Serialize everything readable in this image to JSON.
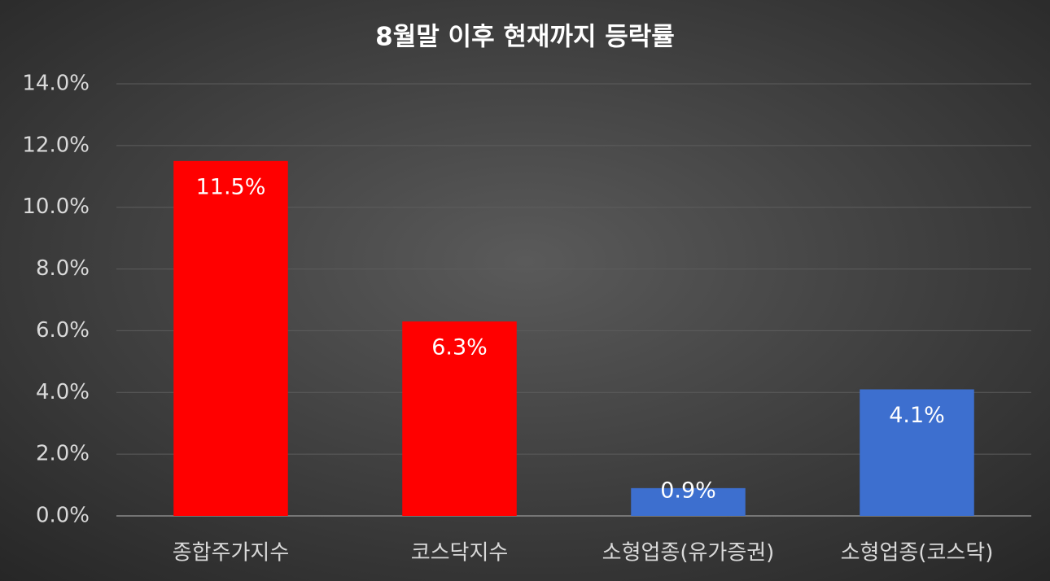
{
  "chart_data": {
    "type": "bar",
    "title": "8월말 이후 현재까지 등락률",
    "categories": [
      "종합주가지수",
      "코스닥지수",
      "소형업종(유가증권)",
      "소형업종(코스닥)"
    ],
    "values": [
      11.5,
      6.3,
      0.9,
      4.1
    ],
    "value_labels": [
      "11.5%",
      "6.3%",
      "0.9%",
      "4.1%"
    ],
    "colors": [
      "#ff0000",
      "#ff0000",
      "#3d6fcf",
      "#3d6fcf"
    ],
    "ylim": [
      0,
      14
    ],
    "yticks": [
      {
        "value": 0,
        "label": "0.0%"
      },
      {
        "value": 2,
        "label": "2.0%"
      },
      {
        "value": 4,
        "label": "4.0%"
      },
      {
        "value": 6,
        "label": "6.0%"
      },
      {
        "value": 8,
        "label": "8.0%"
      },
      {
        "value": 10,
        "label": "10.0%"
      },
      {
        "value": 12,
        "label": "12.0%"
      },
      {
        "value": 14,
        "label": "14.0%"
      }
    ],
    "grid": true
  }
}
